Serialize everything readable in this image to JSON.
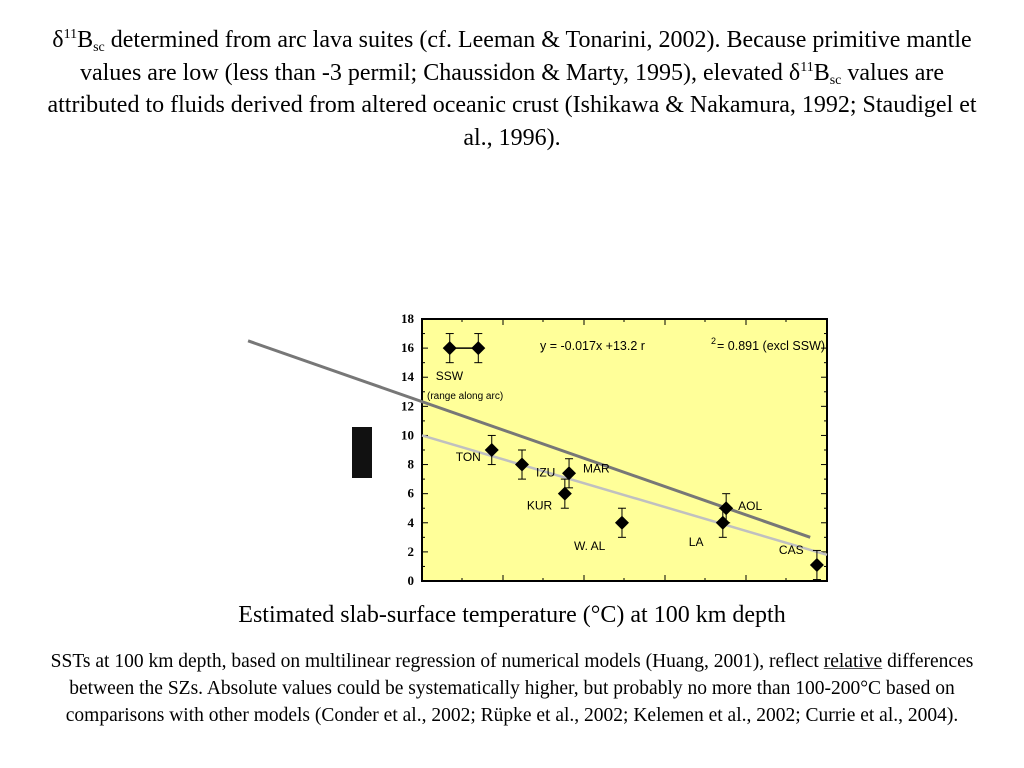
{
  "top_paragraph": {
    "delta1": "δ",
    "sup1": "11",
    "b1": "B",
    "sub1": "sc",
    "text1": " determined from arc lava suites (cf. Leeman & Tonarini, 2002). Because primitive mantle values are low (less than -3 permil; Chaussidon & Marty, 1995), elevated ",
    "delta2": "δ",
    "sup2": "11",
    "b2": "B",
    "sub2": "sc",
    "text2": " values are attributed to fluids derived from altered oceanic crust (Ishikawa & Nakamura, 1992; Staudigel et al., 1996)."
  },
  "caption": "Estimated slab-surface temperature (°C) at 100 km depth",
  "bottom_paragraph": {
    "line1": "SSTs at 100 km depth,  based on multilinear regression of numerical models (Huang, 2001), reflect ",
    "underlined": "relative",
    "rest": " differences between the SZs.  Absolute values could be systematically higher, but probably no more than 100-200°C based on comparisons with other models (Conder et al., 2002; Rüpke et al., 2002; Kelemen et al., 2002; Currie et al., 2004)."
  },
  "chart_data": {
    "type": "scatter",
    "xlabel": "Estimated slab-surface temperature (°C) at 100 km depth",
    "ylabel": "",
    "xlim": [
      188,
      670
    ],
    "ylim": [
      0,
      18
    ],
    "yticks": [
      "0",
      "2",
      "4",
      "6",
      "8",
      "10",
      "12",
      "14",
      "16",
      "18"
    ],
    "background": "#ffff99",
    "annotation": {
      "main": "y = -0.017x +13.2 r",
      "sup": "2",
      "rest": " = 0.891 (excl SSW)"
    },
    "ssw_note": "(range along arc)",
    "points": [
      {
        "label": "SSW",
        "x": 221,
        "y": 16,
        "err": 1
      },
      {
        "label": "",
        "x": 255,
        "y": 16,
        "err": 1
      },
      {
        "label": "TON",
        "x": 271,
        "y": 9,
        "err": 1
      },
      {
        "label": "IZU",
        "x": 307,
        "y": 8,
        "err": 1
      },
      {
        "label": "MAR",
        "x": 363,
        "y": 7.4,
        "err": 1
      },
      {
        "label": "KUR",
        "x": 358,
        "y": 6,
        "err": 1
      },
      {
        "label": "W. AL",
        "x": 426,
        "y": 4,
        "err": 1
      },
      {
        "label": "AOL",
        "x": 550,
        "y": 5,
        "err": 1
      },
      {
        "label": "LA",
        "x": 546,
        "y": 4,
        "err": 1
      },
      {
        "label": "CAS",
        "x": 658,
        "y": 1.1,
        "err": 1
      }
    ],
    "lines": [
      {
        "kind": "regression",
        "color": "#c0c0c0",
        "x": [
          188,
          670
        ],
        "y": [
          10.0,
          1.8
        ]
      },
      {
        "kind": "trend",
        "color": "#777777",
        "x": [
          -19,
          650
        ],
        "y": [
          16.5,
          3.0
        ]
      }
    ]
  }
}
